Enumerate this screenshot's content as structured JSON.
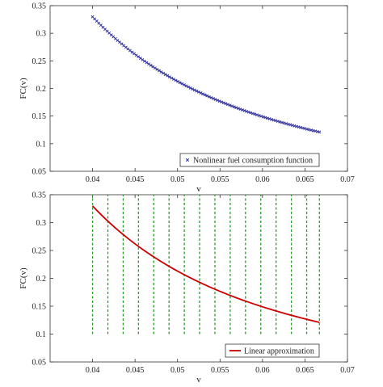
{
  "chart_data": [
    {
      "type": "scatter",
      "title": "",
      "xlabel": "v",
      "ylabel": "FC(v)",
      "xlim": [
        0.035,
        0.07
      ],
      "ylim": [
        0.05,
        0.35
      ],
      "xticks": [
        "0.04",
        "0.045",
        "0.05",
        "0.055",
        "0.06",
        "0.065",
        "0.07"
      ],
      "yticks": [
        "0.05",
        "0.1",
        "0.15",
        "0.2",
        "0.25",
        "0.3",
        "0.35"
      ],
      "grid": false,
      "legend_position": "bottom-right",
      "series": [
        {
          "name": "Nonlinear fuel consumption function",
          "marker": "x",
          "color": "#2a2a9a",
          "x_range": [
            0.04,
            0.0667
          ],
          "function": "FC = a*v^b",
          "points": [
            {
              "x": 0.04,
              "y": 0.313
            },
            {
              "x": 0.045,
              "y": 0.264
            },
            {
              "x": 0.05,
              "y": 0.221
            },
            {
              "x": 0.055,
              "y": 0.185
            },
            {
              "x": 0.06,
              "y": 0.155
            },
            {
              "x": 0.065,
              "y": 0.126
            },
            {
              "x": 0.0667,
              "y": 0.113
            }
          ]
        }
      ]
    },
    {
      "type": "line",
      "title": "",
      "xlabel": "v",
      "ylabel": "FC(v)",
      "xlim": [
        0.035,
        0.07
      ],
      "ylim": [
        0.05,
        0.35
      ],
      "xticks": [
        "0.04",
        "0.045",
        "0.05",
        "0.055",
        "0.06",
        "0.065",
        "0.07"
      ],
      "yticks": [
        "0.05",
        "0.1",
        "0.15",
        "0.2",
        "0.25",
        "0.3",
        "0.35"
      ],
      "grid": false,
      "legend_position": "bottom-right",
      "series": [
        {
          "name": "Linear approximation",
          "color": "#cc0000",
          "points": [
            {
              "x": 0.04,
              "y": 0.313
            },
            {
              "x": 0.045,
              "y": 0.264
            },
            {
              "x": 0.05,
              "y": 0.221
            },
            {
              "x": 0.055,
              "y": 0.185
            },
            {
              "x": 0.06,
              "y": 0.155
            },
            {
              "x": 0.065,
              "y": 0.126
            },
            {
              "x": 0.0667,
              "y": 0.113
            }
          ]
        }
      ],
      "breakpoints": {
        "color": "#2e9a2e",
        "style": "dashed",
        "y_range": [
          0.1,
          0.35
        ],
        "x": [
          0.04,
          0.0418,
          0.0436,
          0.0454,
          0.0472,
          0.049,
          0.0508,
          0.0526,
          0.0544,
          0.0562,
          0.058,
          0.0598,
          0.0616,
          0.0634,
          0.0652,
          0.0667
        ]
      }
    }
  ]
}
